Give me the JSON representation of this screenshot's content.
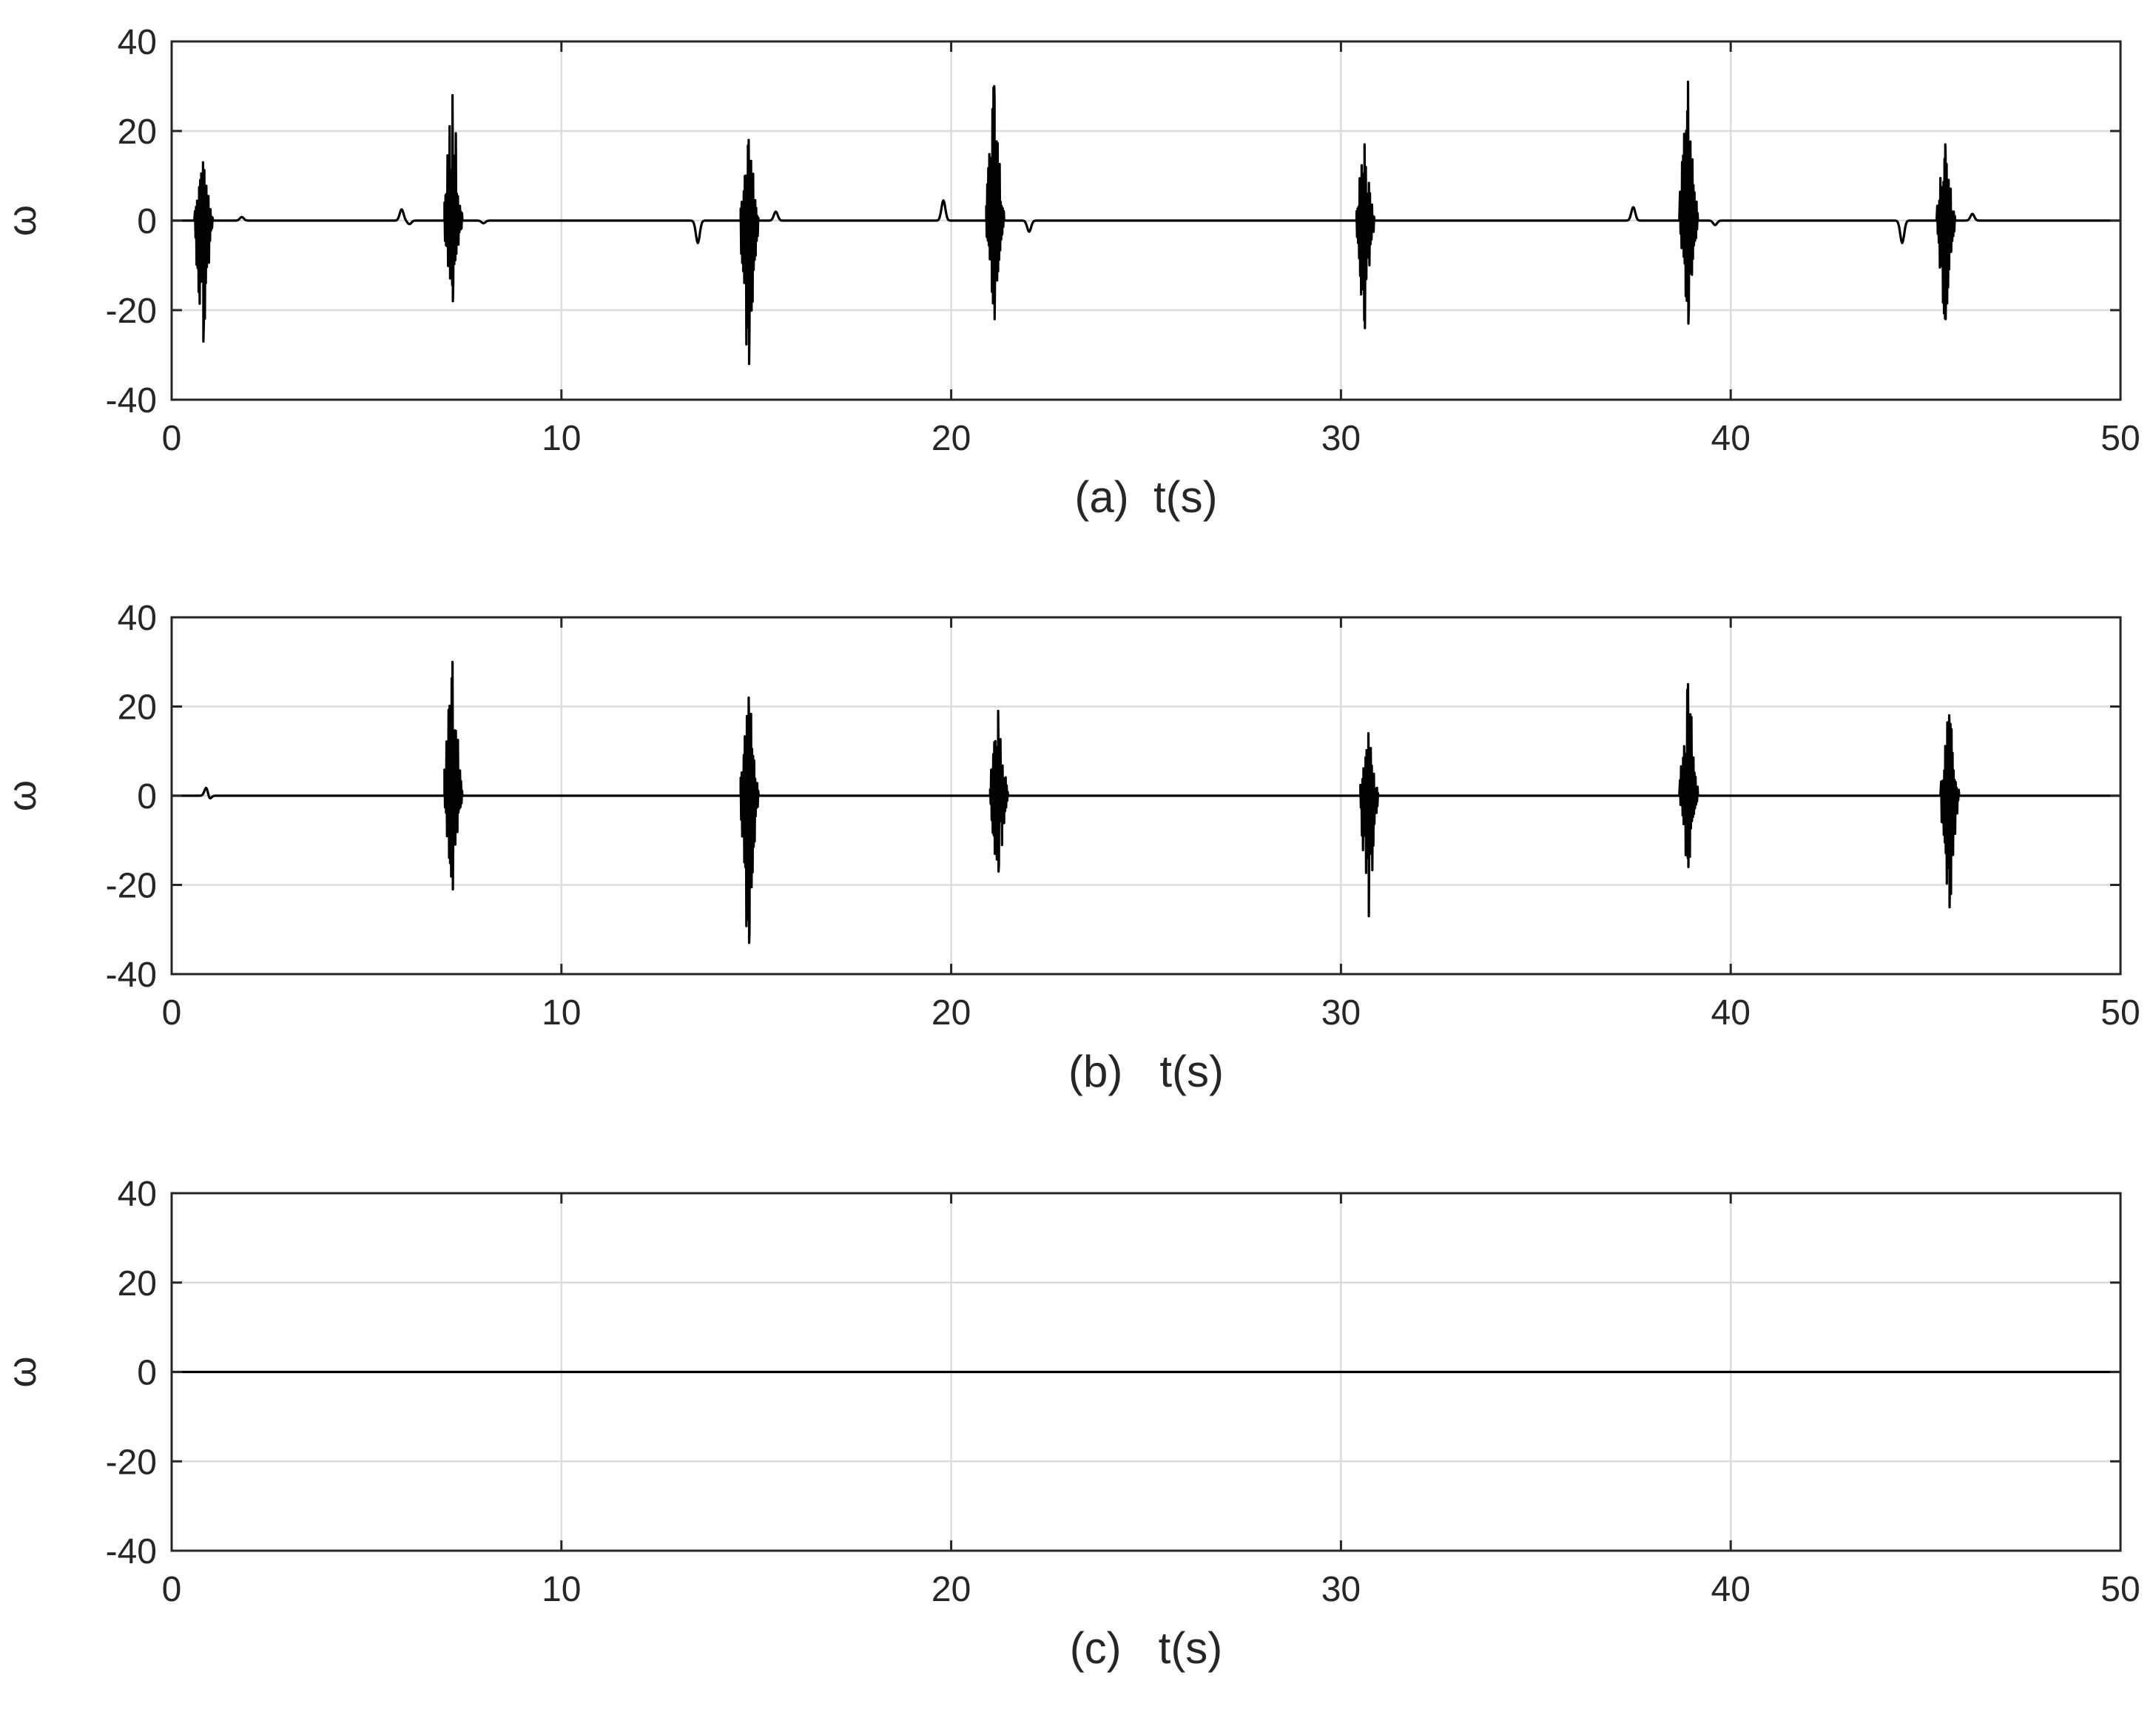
{
  "chart_data": [
    {
      "type": "line",
      "xlabel": "(a)  t(s)",
      "ylabel": "ω",
      "xlim": [
        0,
        50
      ],
      "ylim": [
        -40,
        40
      ],
      "xticks": [
        "0",
        "10",
        "20",
        "30",
        "40",
        "50"
      ],
      "yticks": [
        "40",
        "20",
        "0",
        "-20",
        "-40"
      ],
      "grid": true,
      "baseline": 0,
      "line_color": "#000000",
      "bursts": [
        {
          "t": 0.8,
          "max": 13,
          "min": -27
        },
        {
          "t": 7.2,
          "max": 28,
          "min": -18
        },
        {
          "t": 14.8,
          "max": 18,
          "min": -32
        },
        {
          "t": 21.1,
          "max": 30,
          "min": -22
        },
        {
          "t": 30.6,
          "max": 17,
          "min": -24
        },
        {
          "t": 38.9,
          "max": 31,
          "min": -23
        },
        {
          "t": 45.5,
          "max": 17,
          "min": -22
        }
      ],
      "bumps": [
        {
          "t": 1.8,
          "v": 0.8
        },
        {
          "t": 5.9,
          "v": 2.5
        },
        {
          "t": 6.1,
          "v": -0.8
        },
        {
          "t": 8.0,
          "v": -0.6
        },
        {
          "t": 13.5,
          "v": -5
        },
        {
          "t": 15.5,
          "v": 2
        },
        {
          "t": 19.8,
          "v": 4.5
        },
        {
          "t": 22.0,
          "v": -2.5
        },
        {
          "t": 37.5,
          "v": 3
        },
        {
          "t": 39.6,
          "v": -1
        },
        {
          "t": 44.4,
          "v": -5
        },
        {
          "t": 46.2,
          "v": 1.5
        }
      ]
    },
    {
      "type": "line",
      "xlabel": "(b)   t(s)",
      "ylabel": "ω",
      "xlim": [
        0,
        50
      ],
      "ylim": [
        -40,
        40
      ],
      "xticks": [
        "0",
        "10",
        "20",
        "30",
        "40",
        "50"
      ],
      "yticks": [
        "40",
        "20",
        "0",
        "-20",
        "-40"
      ],
      "grid": true,
      "baseline": 0,
      "line_color": "#000000",
      "bursts": [
        {
          "t": 7.2,
          "max": 30,
          "min": -21
        },
        {
          "t": 14.8,
          "max": 22,
          "min": -33
        },
        {
          "t": 21.2,
          "max": 19,
          "min": -17
        },
        {
          "t": 30.7,
          "max": 14,
          "min": -27
        },
        {
          "t": 38.9,
          "max": 25,
          "min": -16
        },
        {
          "t": 45.6,
          "max": 18,
          "min": -25
        }
      ],
      "bumps": [
        {
          "t": 0.9,
          "v": 2.5
        },
        {
          "t": 0.95,
          "v": -1.5
        }
      ]
    },
    {
      "type": "line",
      "xlabel": "(c)   t(s)",
      "ylabel": "ω",
      "xlim": [
        0,
        50
      ],
      "ylim": [
        -40,
        40
      ],
      "xticks": [
        "0",
        "10",
        "20",
        "30",
        "40",
        "50"
      ],
      "yticks": [
        "40",
        "20",
        "0",
        "-20",
        "-40"
      ],
      "grid": true,
      "baseline": 0,
      "line_color": "#000000",
      "bursts": [],
      "bumps": []
    }
  ]
}
